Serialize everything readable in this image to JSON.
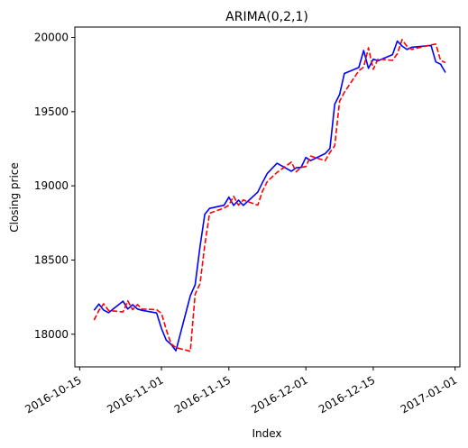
{
  "chart_data": {
    "type": "line",
    "title": "ARIMA(0,2,1)",
    "xlabel": "Index",
    "ylabel": "Closing price",
    "x_ticks": [
      "2016-10-15",
      "2016-11-01",
      "2016-11-15",
      "2016-12-01",
      "2016-12-15",
      "2017-01-01"
    ],
    "y_ticks": [
      18000,
      18500,
      19000,
      19500,
      20000
    ],
    "xlim": [
      "2016-10-14",
      "2017-01-02"
    ],
    "ylim": [
      17780,
      20070
    ],
    "grid": false,
    "series": [
      {
        "color": "#0000ff",
        "style": "solid",
        "x": [
          "2016-10-18",
          "2016-10-19",
          "2016-10-20",
          "2016-10-21",
          "2016-10-24",
          "2016-10-25",
          "2016-10-26",
          "2016-10-27",
          "2016-10-28",
          "2016-10-31",
          "2016-11-01",
          "2016-11-02",
          "2016-11-03",
          "2016-11-04",
          "2016-11-07",
          "2016-11-08",
          "2016-11-09",
          "2016-11-10",
          "2016-11-11",
          "2016-11-14",
          "2016-11-15",
          "2016-11-16",
          "2016-11-17",
          "2016-11-18",
          "2016-11-21",
          "2016-11-22",
          "2016-11-23",
          "2016-11-25",
          "2016-11-28",
          "2016-11-29",
          "2016-11-30",
          "2016-12-01",
          "2016-12-02",
          "2016-12-05",
          "2016-12-06",
          "2016-12-07",
          "2016-12-08",
          "2016-12-09",
          "2016-12-12",
          "2016-12-13",
          "2016-12-14",
          "2016-12-15",
          "2016-12-16",
          "2016-12-19",
          "2016-12-20",
          "2016-12-21",
          "2016-12-22",
          "2016-12-23",
          "2016-12-27",
          "2016-12-28",
          "2016-12-29",
          "2016-12-30"
        ],
        "values": [
          18161,
          18203,
          18162,
          18145,
          18223,
          18170,
          18199,
          18170,
          18161,
          18143,
          18038,
          17960,
          17931,
          17889,
          18260,
          18333,
          18590,
          18808,
          18848,
          18869,
          18924,
          18868,
          18904,
          18868,
          18957,
          19024,
          19084,
          19152,
          19098,
          19122,
          19124,
          19191,
          19170,
          19217,
          19252,
          19550,
          19615,
          19757,
          19797,
          19912,
          19792,
          19853,
          19843,
          19884,
          19975,
          19942,
          19919,
          19934,
          19946,
          19835,
          19820,
          19763
        ]
      },
      {
        "color": "#ff0000",
        "style": "dashed",
        "x": [
          "2016-10-18",
          "2016-10-19",
          "2016-10-20",
          "2016-10-21",
          "2016-10-24",
          "2016-10-25",
          "2016-10-26",
          "2016-10-27",
          "2016-10-28",
          "2016-10-31",
          "2016-11-01",
          "2016-11-02",
          "2016-11-03",
          "2016-11-04",
          "2016-11-07",
          "2016-11-08",
          "2016-11-09",
          "2016-11-10",
          "2016-11-11",
          "2016-11-14",
          "2016-11-15",
          "2016-11-16",
          "2016-11-17",
          "2016-11-18",
          "2016-11-21",
          "2016-11-22",
          "2016-11-23",
          "2016-11-25",
          "2016-11-28",
          "2016-11-29",
          "2016-11-30",
          "2016-12-01",
          "2016-12-02",
          "2016-12-05",
          "2016-12-06",
          "2016-12-07",
          "2016-12-08",
          "2016-12-09",
          "2016-12-12",
          "2016-12-13",
          "2016-12-14",
          "2016-12-15",
          "2016-12-16",
          "2016-12-19",
          "2016-12-20",
          "2016-12-21",
          "2016-12-22",
          "2016-12-23",
          "2016-12-27",
          "2016-12-28",
          "2016-12-29",
          "2016-12-30"
        ],
        "values": [
          18095,
          18160,
          18205,
          18160,
          18150,
          18225,
          18165,
          18200,
          18170,
          18165,
          18140,
          18030,
          17935,
          17910,
          17885,
          18270,
          18340,
          18600,
          18815,
          18850,
          18870,
          18930,
          18870,
          18905,
          18870,
          18965,
          19030,
          19090,
          19160,
          19095,
          19125,
          19130,
          19200,
          19170,
          19225,
          19270,
          19570,
          19630,
          19775,
          19800,
          19930,
          19785,
          19855,
          19845,
          19890,
          19985,
          19940,
          19920,
          19950,
          19955,
          19845,
          19830
        ]
      }
    ]
  }
}
